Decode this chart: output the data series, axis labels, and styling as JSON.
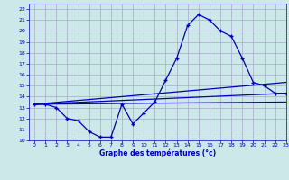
{
  "bg_color": "#cce8e8",
  "grid_color": "#aaaacc",
  "line_color": "#0000bb",
  "xlabel": "Graphe des températures (°c)",
  "xlim": [
    -0.5,
    23
  ],
  "ylim": [
    10,
    22.5
  ],
  "xticks": [
    0,
    1,
    2,
    3,
    4,
    5,
    6,
    7,
    8,
    9,
    10,
    11,
    12,
    13,
    14,
    15,
    16,
    17,
    18,
    19,
    20,
    21,
    22,
    23
  ],
  "yticks": [
    10,
    11,
    12,
    13,
    14,
    15,
    16,
    17,
    18,
    19,
    20,
    21,
    22
  ],
  "line_main": {
    "x": [
      0,
      1,
      2,
      3,
      4,
      5,
      6,
      7,
      8,
      9,
      10,
      11,
      12,
      13,
      14,
      15,
      16,
      17,
      18,
      19,
      20,
      21,
      22,
      23
    ],
    "y": [
      13.3,
      13.3,
      13.0,
      12.0,
      11.8,
      10.8,
      10.3,
      10.3,
      13.3,
      11.5,
      12.5,
      13.5,
      15.5,
      17.5,
      20.5,
      21.5,
      21.0,
      20.0,
      19.5,
      17.5,
      15.3,
      15.0,
      14.3,
      14.3
    ]
  },
  "line_avg_high": {
    "x": [
      0,
      23
    ],
    "y": [
      13.3,
      15.3
    ]
  },
  "line_avg_mid": {
    "x": [
      0,
      23
    ],
    "y": [
      13.3,
      14.3
    ]
  },
  "line_avg_low": {
    "x": [
      0,
      23
    ],
    "y": [
      13.3,
      13.5
    ]
  }
}
